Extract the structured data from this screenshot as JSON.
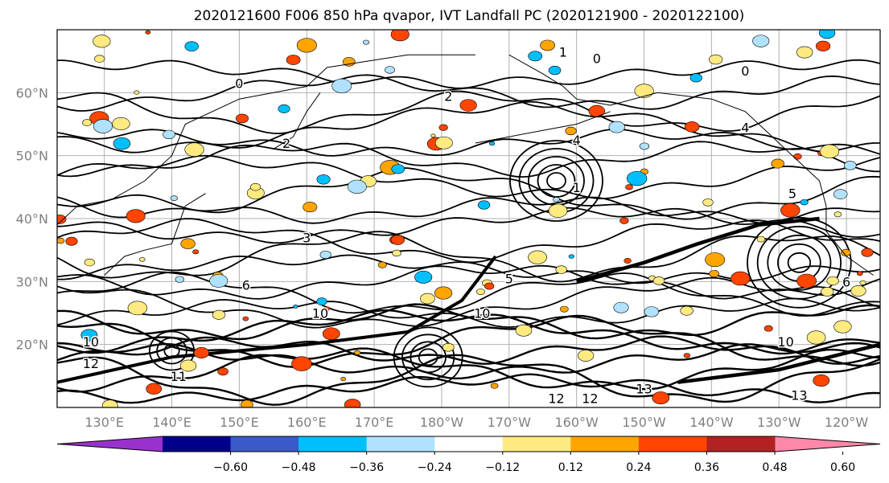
{
  "chart_data": {
    "type": "contour",
    "title": "2020121600 F006 850 hPa qvapor, IVT Landfall PC (2020121900 - 2020122100)",
    "map": {
      "projection": "PlateCarree",
      "lon_range": [
        123,
        245
      ],
      "lat_range": [
        10,
        70
      ],
      "gridlines": true,
      "lat_ticks": [
        {
          "value": 20,
          "label": "20°N"
        },
        {
          "value": 30,
          "label": "30°N"
        },
        {
          "value": 40,
          "label": "40°N"
        },
        {
          "value": 50,
          "label": "50°N"
        },
        {
          "value": 60,
          "label": "60°N"
        }
      ],
      "lon_ticks": [
        {
          "value": 130,
          "label": "130°E"
        },
        {
          "value": 140,
          "label": "140°E"
        },
        {
          "value": 150,
          "label": "150°E"
        },
        {
          "value": 160,
          "label": "160°E"
        },
        {
          "value": 170,
          "label": "170°E"
        },
        {
          "value": 180,
          "label": "180°W"
        },
        {
          "value": 190,
          "label": "170°W"
        },
        {
          "value": 200,
          "label": "160°W"
        },
        {
          "value": 210,
          "label": "150°W"
        },
        {
          "value": 220,
          "label": "140°W"
        },
        {
          "value": 230,
          "label": "130°W"
        },
        {
          "value": 240,
          "label": "120°W"
        }
      ]
    },
    "colorbar": {
      "extend": "both",
      "colors": [
        "#9932cc",
        "#00008b",
        "#3a5bc7",
        "#00bfff",
        "#b0e2ff",
        "#ffffff",
        "#ffea80",
        "#ffa500",
        "#ff4500",
        "#b22222",
        "#ff88aa"
      ],
      "boundaries": [
        -0.72,
        -0.6,
        -0.48,
        -0.36,
        -0.24,
        -0.12,
        0.12,
        0.24,
        0.36,
        0.48,
        0.6,
        0.72
      ],
      "tick_labels": [
        "−0.60",
        "−0.48",
        "−0.36",
        "−0.24",
        "−0.12",
        "0.12",
        "0.24",
        "0.36",
        "0.48",
        "0.60"
      ]
    },
    "contour_labels": [
      {
        "text": "0",
        "lon": 203,
        "lat": 65.5
      },
      {
        "text": "1",
        "lon": 198,
        "lat": 66.5
      },
      {
        "text": "0",
        "lon": 150,
        "lat": 61.5
      },
      {
        "text": "2",
        "lon": 181,
        "lat": 59.5
      },
      {
        "text": "2",
        "lon": 157,
        "lat": 52
      },
      {
        "text": "4",
        "lon": 200,
        "lat": 52.5
      },
      {
        "text": "4",
        "lon": 225,
        "lat": 54.5
      },
      {
        "text": "0",
        "lon": 225,
        "lat": 63.5
      },
      {
        "text": "1",
        "lon": 200,
        "lat": 45
      },
      {
        "text": "3",
        "lon": 160,
        "lat": 37
      },
      {
        "text": "6",
        "lon": 151,
        "lat": 29.5
      },
      {
        "text": "5",
        "lon": 190,
        "lat": 30.5
      },
      {
        "text": "10",
        "lon": 162,
        "lat": 25
      },
      {
        "text": "10",
        "lon": 186,
        "lat": 25
      },
      {
        "text": "12",
        "lon": 197,
        "lat": 11.5
      },
      {
        "text": "12",
        "lon": 202,
        "lat": 11.5
      },
      {
        "text": "13",
        "lon": 210,
        "lat": 13
      },
      {
        "text": "13",
        "lon": 233,
        "lat": 12
      },
      {
        "text": "11",
        "lon": 141,
        "lat": 15
      },
      {
        "text": "10",
        "lon": 128,
        "lat": 20.5
      },
      {
        "text": "12",
        "lon": 128,
        "lat": 17
      },
      {
        "text": "6",
        "lon": 240,
        "lat": 30
      },
      {
        "text": "10",
        "lon": 231,
        "lat": 20.5
      },
      {
        "text": "5",
        "lon": 232,
        "lat": 44
      }
    ]
  }
}
